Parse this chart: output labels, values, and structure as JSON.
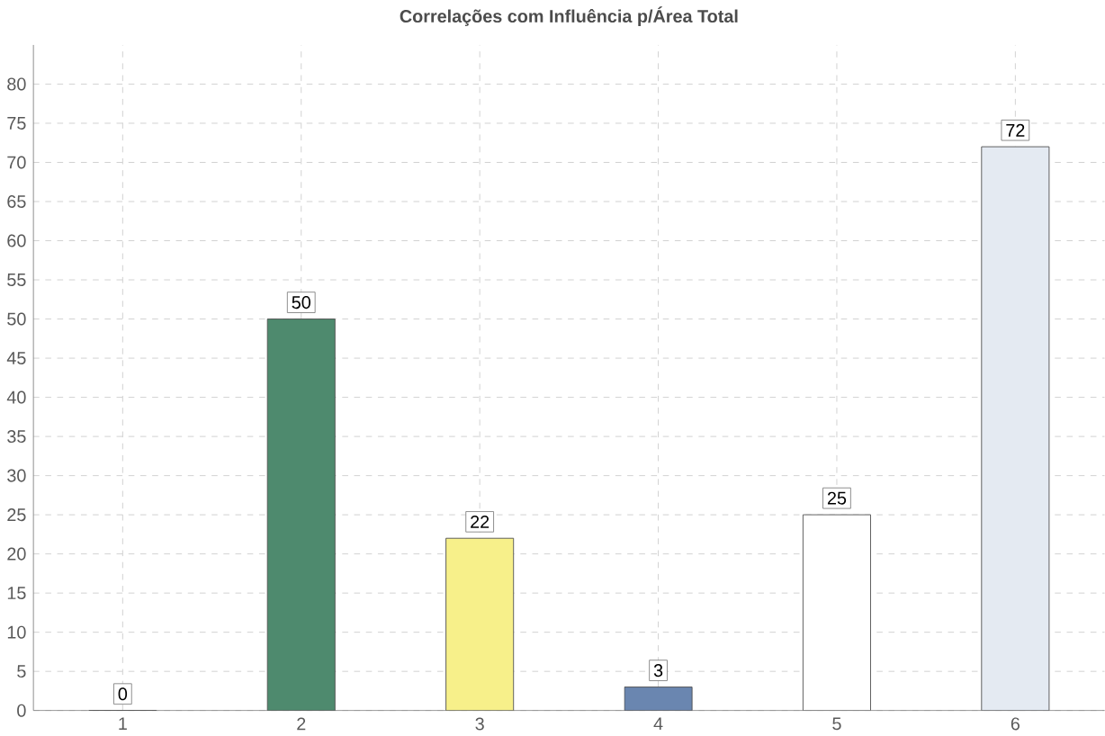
{
  "chart_data": {
    "type": "bar",
    "title": "Correlações com Influência p/Área Total",
    "categories": [
      "1",
      "2",
      "3",
      "4",
      "5",
      "6"
    ],
    "values": [
      0,
      50,
      22,
      3,
      25,
      72
    ],
    "colors": [
      "#e8a0a0",
      "#4e8a6e",
      "#f7f08a",
      "#6a86b0",
      "#ffffff",
      "#e4eaf2"
    ],
    "ylim": [
      0,
      85
    ],
    "yticks": [
      0,
      5,
      10,
      15,
      20,
      25,
      30,
      35,
      40,
      45,
      50,
      55,
      60,
      65,
      70,
      75,
      80
    ],
    "grid": true,
    "data_labels": true
  }
}
